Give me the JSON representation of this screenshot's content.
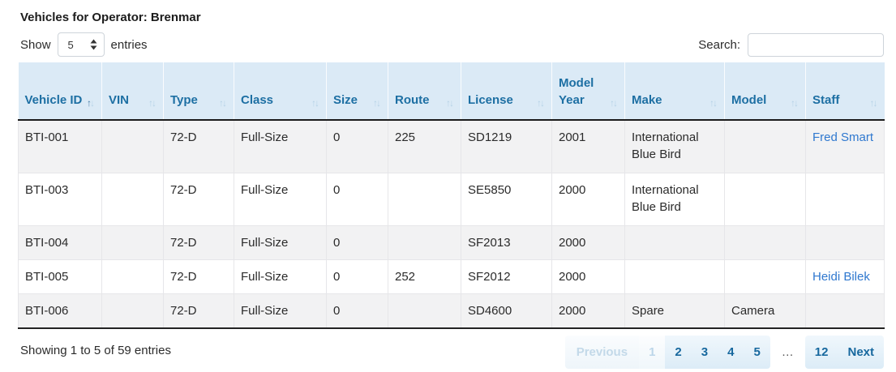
{
  "title": "Vehicles for Operator: Brenmar",
  "controls": {
    "show_label": "Show",
    "page_size": "5",
    "entries_label": "entries",
    "search_label": "Search:",
    "search_value": ""
  },
  "table": {
    "columns": [
      {
        "label": "Vehicle ID",
        "sort": "asc"
      },
      {
        "label": "VIN",
        "sort": "none"
      },
      {
        "label": "Type",
        "sort": "none"
      },
      {
        "label": "Class",
        "sort": "none"
      },
      {
        "label": "Size",
        "sort": "none"
      },
      {
        "label": "Route",
        "sort": "none"
      },
      {
        "label": "License",
        "sort": "none"
      },
      {
        "label": "Model Year",
        "sort": "none"
      },
      {
        "label": "Make",
        "sort": "none"
      },
      {
        "label": "Model",
        "sort": "none"
      },
      {
        "label": "Staff",
        "sort": "none"
      }
    ],
    "rows": [
      [
        "BTI-001",
        "",
        "72-D",
        "Full-Size",
        "0",
        "225",
        "SD1219",
        "2001",
        "International Blue Bird",
        "",
        {
          "text": "Fred Smart",
          "link": true
        }
      ],
      [
        "BTI-003",
        "",
        "72-D",
        "Full-Size",
        "0",
        "",
        "SE5850",
        "2000",
        "International Blue Bird",
        "",
        ""
      ],
      [
        "BTI-004",
        "",
        "72-D",
        "Full-Size",
        "0",
        "",
        "SF2013",
        "2000",
        "",
        "",
        ""
      ],
      [
        "BTI-005",
        "",
        "72-D",
        "Full-Size",
        "0",
        "252",
        "SF2012",
        "2000",
        "",
        "",
        {
          "text": "Heidi Bilek",
          "link": true
        }
      ],
      [
        "BTI-006",
        "",
        "72-D",
        "Full-Size",
        "0",
        "",
        "SD4600",
        "2000",
        "Spare",
        "Camera",
        ""
      ]
    ]
  },
  "footer": {
    "info": "Showing 1 to 5 of 59 entries",
    "pagination": [
      {
        "label": "Previous",
        "state": "disabled"
      },
      {
        "label": "1",
        "state": "current"
      },
      {
        "label": "2",
        "state": "page"
      },
      {
        "label": "3",
        "state": "page"
      },
      {
        "label": "4",
        "state": "page"
      },
      {
        "label": "5",
        "state": "page"
      },
      {
        "label": "…",
        "state": "ellipsis"
      },
      {
        "label": "12",
        "state": "page"
      },
      {
        "label": "Next",
        "state": "page"
      }
    ]
  },
  "colors": {
    "header_bg": "#dbeaf6",
    "header_text": "#1d6fa3",
    "active_sort_arrow": "#4a7fa8",
    "inactive_sort_arrow": "#b6d2e6",
    "stripe_row_bg": "#f2f2f3",
    "link": "#2f78cf",
    "pagination_text": "#17689e",
    "pagination_bg": "#dcecf7",
    "pagination_disabled_text": "#c3d9e9"
  }
}
